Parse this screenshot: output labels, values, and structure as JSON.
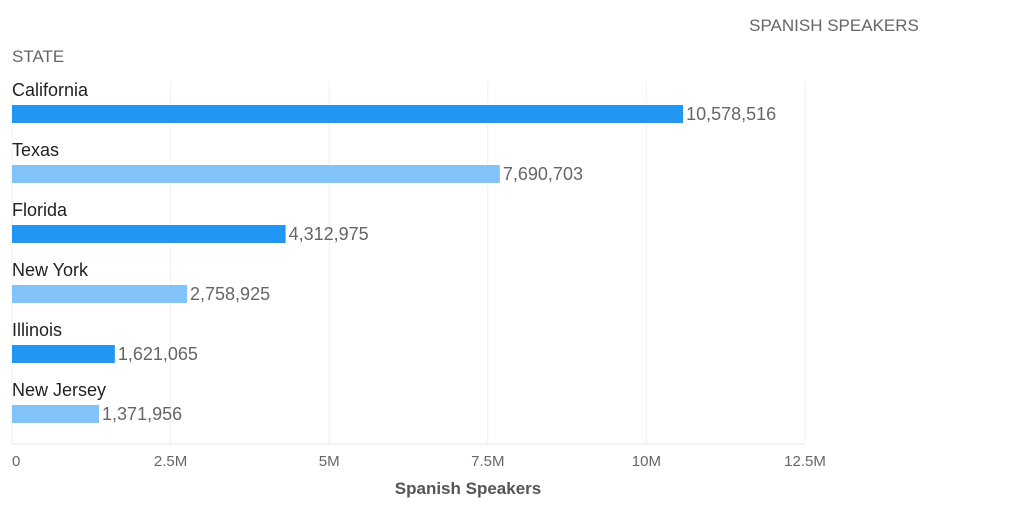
{
  "chart_data": {
    "type": "bar",
    "orientation": "horizontal",
    "value_header": "SPANISH SPEAKERS",
    "category_header": "STATE",
    "xlabel": "Spanish Speakers",
    "categories": [
      "California",
      "Texas",
      "Florida",
      "New York",
      "Illinois",
      "New Jersey"
    ],
    "values": [
      10578516,
      7690703,
      4312975,
      2758925,
      1621065,
      1371956
    ],
    "value_labels": [
      "10,578,516",
      "7,690,703",
      "4,312,975",
      "2,758,925",
      "1,621,065",
      "1,371,956"
    ],
    "xlim": [
      0,
      12500000
    ],
    "xticks": [
      0,
      2500000,
      5000000,
      7500000,
      10000000,
      12500000
    ],
    "xtick_labels": [
      "0",
      "2.5M",
      "5M",
      "7.5M",
      "10M",
      "12.5M"
    ],
    "grid": true,
    "colors": {
      "bar_primary": "#2196F3",
      "bar_secondary": "#82C4FA",
      "grid": "#f0f0f0",
      "text_dark": "#222222",
      "text_muted": "#666666",
      "axis_title": "#555555"
    }
  }
}
